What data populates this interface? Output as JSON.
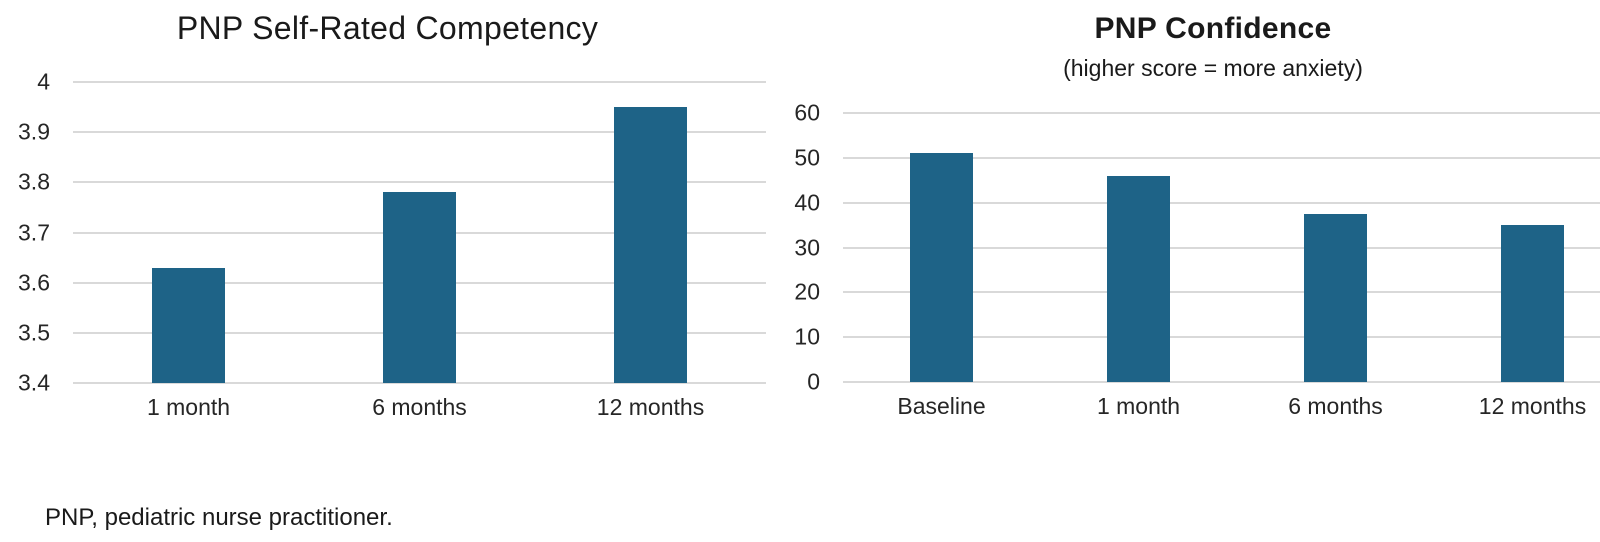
{
  "page": {
    "background": "#ffffff",
    "footnote": "PNP, pediatric nurse practitioner."
  },
  "colors": {
    "bar": "#1e6387",
    "gridline": "#d9d9d9",
    "text": "#262626",
    "title": "#1a1a1a"
  },
  "chart_data": [
    {
      "type": "bar",
      "title": "PNP Self-Rated Competency",
      "subtitle": "",
      "categories": [
        "1 month",
        "6 months",
        "12 months"
      ],
      "values": [
        3.63,
        3.78,
        3.95
      ],
      "xlabel": "",
      "ylabel": "",
      "ylim": [
        3.4,
        4
      ],
      "yticks": [
        3.4,
        3.5,
        3.6,
        3.7,
        3.8,
        3.9,
        4
      ],
      "ytick_labels": [
        "3.4",
        "3.5",
        "3.6",
        "3.7",
        "3.8",
        "3.9",
        "4"
      ],
      "grid": true,
      "legend_position": "none",
      "bar_color": "#1e6387"
    },
    {
      "type": "bar",
      "title": "PNP Confidence",
      "subtitle": "(higher score = more anxiety)",
      "categories": [
        "Baseline",
        "1 month",
        "6 months",
        "12 months"
      ],
      "values": [
        51,
        46,
        37.5,
        35
      ],
      "xlabel": "",
      "ylabel": "",
      "ylim": [
        0,
        60
      ],
      "yticks": [
        0,
        10,
        20,
        30,
        40,
        50,
        60
      ],
      "ytick_labels": [
        "0",
        "10",
        "20",
        "30",
        "40",
        "50",
        "60"
      ],
      "grid": true,
      "legend_position": "none",
      "bar_color": "#1e6387"
    }
  ]
}
